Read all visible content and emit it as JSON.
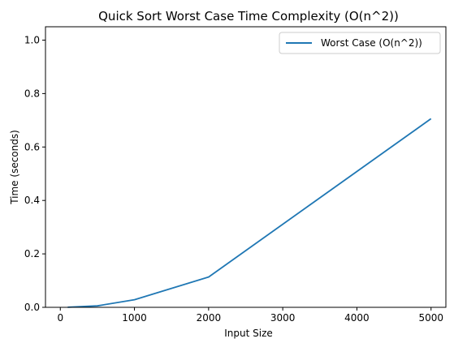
{
  "chart_data": {
    "type": "line",
    "title": "Quick Sort Worst Case Time Complexity (O(n^2))",
    "xlabel": "Input Size",
    "ylabel": "Time (seconds)",
    "xlim": [
      -200,
      5200
    ],
    "ylim": [
      0,
      1.05
    ],
    "x_ticks": [
      0,
      1000,
      2000,
      3000,
      4000,
      5000
    ],
    "y_ticks": [
      0.0,
      0.2,
      0.4,
      0.6,
      0.8,
      1.0
    ],
    "x_tick_labels": [
      "0",
      "1000",
      "2000",
      "3000",
      "4000",
      "5000"
    ],
    "y_tick_labels": [
      "0.0",
      "0.2",
      "0.4",
      "0.6",
      "0.8",
      "1.0"
    ],
    "grid": false,
    "legend_position": "top-right",
    "series": [
      {
        "name": "Worst Case (O(n^2))",
        "color": "#1f77b4",
        "x": [
          100,
          500,
          1000,
          2000,
          5000
        ],
        "y": [
          0.0004,
          0.0056,
          0.0284,
          0.1136,
          0.7059
        ]
      }
    ]
  }
}
